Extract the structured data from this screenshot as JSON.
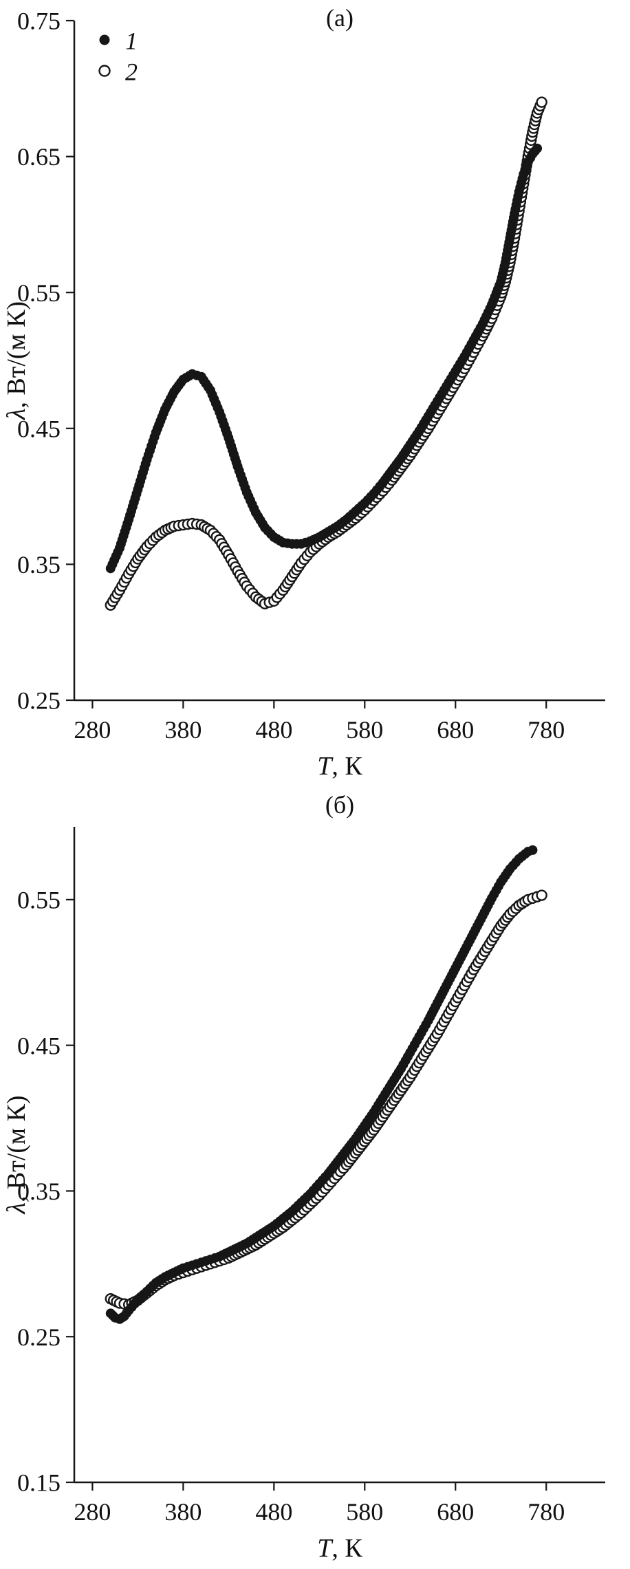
{
  "colors": {
    "ink": "#161616",
    "background": "#ffffff",
    "open_marker_fill": "#ffffff"
  },
  "chart_data": [
    {
      "type": "scatter",
      "title": "(а)",
      "xlabel_italic": "T",
      "xlabel_rest": ", К",
      "ylabel_italic": "λ",
      "ylabel_rest": ", Вт/(м К)",
      "xlim": [
        260,
        845
      ],
      "ylim": [
        0.25,
        0.75
      ],
      "xticks": [
        280,
        380,
        480,
        580,
        680,
        780
      ],
      "yticks": [
        0.25,
        0.35,
        0.45,
        0.55,
        0.65,
        0.75
      ],
      "grid": false,
      "legend": {
        "position": "top-left",
        "entries": [
          {
            "label": "1",
            "marker": "filled-circle"
          },
          {
            "label": "2",
            "marker": "open-circle"
          }
        ]
      },
      "series": [
        {
          "name": "1",
          "marker": "filled-circle",
          "points": [
            [
              300,
              0.347
            ],
            [
              310,
              0.362
            ],
            [
              320,
              0.383
            ],
            [
              330,
              0.405
            ],
            [
              340,
              0.427
            ],
            [
              350,
              0.447
            ],
            [
              360,
              0.464
            ],
            [
              370,
              0.477
            ],
            [
              380,
              0.486
            ],
            [
              390,
              0.49
            ],
            [
              400,
              0.488
            ],
            [
              410,
              0.478
            ],
            [
              420,
              0.462
            ],
            [
              430,
              0.443
            ],
            [
              440,
              0.422
            ],
            [
              450,
              0.403
            ],
            [
              460,
              0.388
            ],
            [
              470,
              0.377
            ],
            [
              480,
              0.37
            ],
            [
              490,
              0.366
            ],
            [
              500,
              0.365
            ],
            [
              510,
              0.365
            ],
            [
              520,
              0.367
            ],
            [
              530,
              0.37
            ],
            [
              540,
              0.374
            ],
            [
              550,
              0.378
            ],
            [
              560,
              0.383
            ],
            [
              570,
              0.389
            ],
            [
              580,
              0.395
            ],
            [
              590,
              0.402
            ],
            [
              600,
              0.41
            ],
            [
              610,
              0.419
            ],
            [
              620,
              0.428
            ],
            [
              630,
              0.438
            ],
            [
              640,
              0.448
            ],
            [
              650,
              0.459
            ],
            [
              660,
              0.47
            ],
            [
              670,
              0.481
            ],
            [
              680,
              0.492
            ],
            [
              690,
              0.503
            ],
            [
              700,
              0.515
            ],
            [
              710,
              0.527
            ],
            [
              720,
              0.541
            ],
            [
              730,
              0.558
            ],
            [
              735,
              0.572
            ],
            [
              740,
              0.59
            ],
            [
              745,
              0.608
            ],
            [
              750,
              0.624
            ],
            [
              755,
              0.637
            ],
            [
              760,
              0.646
            ],
            [
              765,
              0.652
            ],
            [
              770,
              0.656
            ]
          ]
        },
        {
          "name": "2",
          "marker": "open-circle",
          "points": [
            [
              300,
              0.32
            ],
            [
              310,
              0.331
            ],
            [
              320,
              0.343
            ],
            [
              330,
              0.354
            ],
            [
              340,
              0.363
            ],
            [
              350,
              0.37
            ],
            [
              360,
              0.375
            ],
            [
              370,
              0.378
            ],
            [
              380,
              0.379
            ],
            [
              390,
              0.38
            ],
            [
              400,
              0.379
            ],
            [
              410,
              0.375
            ],
            [
              420,
              0.368
            ],
            [
              430,
              0.357
            ],
            [
              440,
              0.345
            ],
            [
              450,
              0.334
            ],
            [
              460,
              0.326
            ],
            [
              470,
              0.321
            ],
            [
              480,
              0.323
            ],
            [
              490,
              0.331
            ],
            [
              500,
              0.341
            ],
            [
              510,
              0.351
            ],
            [
              520,
              0.359
            ],
            [
              530,
              0.365
            ],
            [
              540,
              0.37
            ],
            [
              550,
              0.374
            ],
            [
              560,
              0.379
            ],
            [
              570,
              0.384
            ],
            [
              580,
              0.39
            ],
            [
              590,
              0.397
            ],
            [
              600,
              0.404
            ],
            [
              610,
              0.412
            ],
            [
              620,
              0.421
            ],
            [
              630,
              0.43
            ],
            [
              640,
              0.44
            ],
            [
              650,
              0.45
            ],
            [
              660,
              0.461
            ],
            [
              670,
              0.472
            ],
            [
              680,
              0.483
            ],
            [
              690,
              0.494
            ],
            [
              700,
              0.506
            ],
            [
              710,
              0.518
            ],
            [
              720,
              0.531
            ],
            [
              730,
              0.547
            ],
            [
              735,
              0.558
            ],
            [
              740,
              0.572
            ],
            [
              745,
              0.59
            ],
            [
              750,
              0.61
            ],
            [
              755,
              0.63
            ],
            [
              760,
              0.65
            ],
            [
              765,
              0.668
            ],
            [
              770,
              0.682
            ],
            [
              775,
              0.69
            ]
          ]
        }
      ]
    },
    {
      "type": "scatter",
      "title": "(б)",
      "xlabel_italic": "T",
      "xlabel_rest": ", К",
      "ylabel_italic": "λ",
      "ylabel_rest": ", Вт/(м К)",
      "xlim": [
        260,
        845
      ],
      "ylim": [
        0.15,
        0.6
      ],
      "xticks": [
        280,
        380,
        480,
        580,
        680,
        780
      ],
      "yticks": [
        0.15,
        0.25,
        0.35,
        0.45,
        0.55
      ],
      "grid": false,
      "series": [
        {
          "name": "1",
          "marker": "filled-circle",
          "points": [
            [
              300,
              0.266
            ],
            [
              305,
              0.263
            ],
            [
              310,
              0.262
            ],
            [
              315,
              0.264
            ],
            [
              320,
              0.268
            ],
            [
              330,
              0.275
            ],
            [
              340,
              0.281
            ],
            [
              350,
              0.287
            ],
            [
              360,
              0.291
            ],
            [
              370,
              0.294
            ],
            [
              380,
              0.297
            ],
            [
              390,
              0.299
            ],
            [
              400,
              0.301
            ],
            [
              410,
              0.303
            ],
            [
              420,
              0.305
            ],
            [
              430,
              0.308
            ],
            [
              440,
              0.311
            ],
            [
              450,
              0.314
            ],
            [
              460,
              0.318
            ],
            [
              470,
              0.322
            ],
            [
              480,
              0.326
            ],
            [
              490,
              0.331
            ],
            [
              500,
              0.336
            ],
            [
              510,
              0.342
            ],
            [
              520,
              0.348
            ],
            [
              530,
              0.355
            ],
            [
              540,
              0.362
            ],
            [
              550,
              0.37
            ],
            [
              560,
              0.378
            ],
            [
              570,
              0.386
            ],
            [
              580,
              0.395
            ],
            [
              590,
              0.404
            ],
            [
              600,
              0.414
            ],
            [
              610,
              0.424
            ],
            [
              620,
              0.434
            ],
            [
              630,
              0.445
            ],
            [
              640,
              0.456
            ],
            [
              650,
              0.467
            ],
            [
              660,
              0.479
            ],
            [
              670,
              0.491
            ],
            [
              680,
              0.503
            ],
            [
              690,
              0.515
            ],
            [
              700,
              0.527
            ],
            [
              710,
              0.539
            ],
            [
              720,
              0.551
            ],
            [
              730,
              0.562
            ],
            [
              740,
              0.571
            ],
            [
              750,
              0.578
            ],
            [
              760,
              0.583
            ],
            [
              765,
              0.584
            ]
          ]
        },
        {
          "name": "2",
          "marker": "open-circle",
          "points": [
            [
              300,
              0.276
            ],
            [
              310,
              0.273
            ],
            [
              320,
              0.272
            ],
            [
              330,
              0.275
            ],
            [
              340,
              0.28
            ],
            [
              350,
              0.285
            ],
            [
              360,
              0.289
            ],
            [
              370,
              0.292
            ],
            [
              380,
              0.294
            ],
            [
              390,
              0.296
            ],
            [
              400,
              0.298
            ],
            [
              410,
              0.3
            ],
            [
              420,
              0.302
            ],
            [
              430,
              0.304
            ],
            [
              440,
              0.307
            ],
            [
              450,
              0.31
            ],
            [
              460,
              0.313
            ],
            [
              470,
              0.317
            ],
            [
              480,
              0.321
            ],
            [
              490,
              0.325
            ],
            [
              500,
              0.33
            ],
            [
              510,
              0.335
            ],
            [
              520,
              0.341
            ],
            [
              530,
              0.347
            ],
            [
              540,
              0.354
            ],
            [
              550,
              0.361
            ],
            [
              560,
              0.368
            ],
            [
              570,
              0.376
            ],
            [
              580,
              0.384
            ],
            [
              590,
              0.392
            ],
            [
              600,
              0.401
            ],
            [
              610,
              0.41
            ],
            [
              620,
              0.419
            ],
            [
              630,
              0.428
            ],
            [
              640,
              0.438
            ],
            [
              650,
              0.448
            ],
            [
              660,
              0.458
            ],
            [
              670,
              0.469
            ],
            [
              680,
              0.48
            ],
            [
              690,
              0.491
            ],
            [
              700,
              0.502
            ],
            [
              710,
              0.512
            ],
            [
              720,
              0.522
            ],
            [
              730,
              0.532
            ],
            [
              740,
              0.54
            ],
            [
              750,
              0.546
            ],
            [
              760,
              0.55
            ],
            [
              770,
              0.552
            ],
            [
              775,
              0.553
            ]
          ]
        }
      ]
    }
  ]
}
